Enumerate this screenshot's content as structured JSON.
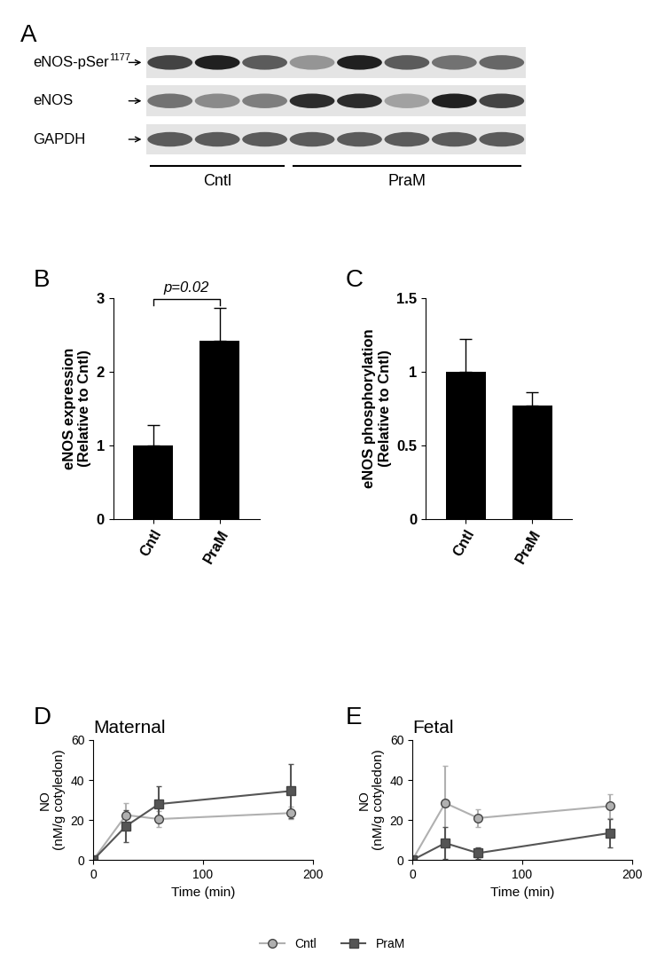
{
  "chart_data": [
    {
      "type": "blot",
      "panel": "A",
      "rows": [
        {
          "label": "eNOS-pSer",
          "superscript": "1177",
          "intensities": [
            0.8,
            0.95,
            0.7,
            0.45,
            0.95,
            0.7,
            0.6,
            0.65
          ]
        },
        {
          "label": "eNOS",
          "intensities": [
            0.6,
            0.5,
            0.55,
            0.9,
            0.9,
            0.4,
            0.95,
            0.8
          ]
        },
        {
          "label": "GAPDH",
          "intensities": [
            0.7,
            0.7,
            0.7,
            0.7,
            0.7,
            0.7,
            0.7,
            0.7
          ]
        }
      ],
      "groups": [
        {
          "name": "Cntl",
          "lanes": 3
        },
        {
          "name": "PraM",
          "lanes": 5
        }
      ]
    },
    {
      "type": "bar",
      "panel": "B",
      "categories": [
        "Cntl",
        "PraM"
      ],
      "values": [
        1.0,
        2.42
      ],
      "error": [
        0.27,
        0.45
      ],
      "color": "#000000",
      "y_label": "eNOS expression\n(Relative to Cntl)",
      "ylim": [
        0,
        3
      ],
      "yticks": [
        0,
        1,
        2,
        3
      ],
      "annotations": [
        {
          "text": "p=0.02"
        }
      ]
    },
    {
      "type": "bar",
      "panel": "C",
      "categories": [
        "Cntl",
        "PraM"
      ],
      "values": [
        1.0,
        0.77
      ],
      "error": [
        0.22,
        0.09
      ],
      "color": "#000000",
      "y_label": "eNOS phosphorylation\n(Relative to Cntl)",
      "ylim": [
        0,
        1.5
      ],
      "yticks": [
        0,
        0.5,
        1,
        1.5
      ]
    },
    {
      "type": "line",
      "panel": "D",
      "title": "Maternal",
      "x_label": "Time (min)",
      "y_label": "NO\n(nM/g cotyledon)",
      "x": [
        0,
        30,
        60,
        180
      ],
      "xlim": [
        0,
        200
      ],
      "xticks": [
        0,
        100,
        200
      ],
      "ylim": [
        0,
        60
      ],
      "yticks": [
        0,
        20,
        40,
        60
      ],
      "legend": "lower center",
      "series": [
        {
          "name": "Cntl",
          "color": "#b0b0b0",
          "marker": "circle",
          "values": [
            0,
            22.5,
            20.5,
            23.5
          ],
          "error": [
            0,
            6,
            4,
            3
          ]
        },
        {
          "name": "PraM",
          "color": "#555555",
          "marker": "square",
          "values": [
            0,
            17,
            28,
            34.5
          ],
          "error": [
            0,
            8,
            9,
            13.5
          ]
        }
      ]
    },
    {
      "type": "line",
      "panel": "E",
      "title": "Fetal",
      "x_label": "Time (min)",
      "y_label": "NO\n(nM/g cotyledon)",
      "x": [
        0,
        30,
        60,
        180
      ],
      "xlim": [
        0,
        200
      ],
      "xticks": [
        0,
        100,
        200
      ],
      "ylim": [
        0,
        60
      ],
      "yticks": [
        0,
        20,
        40,
        60
      ],
      "series": [
        {
          "name": "Cntl",
          "color": "#b0b0b0",
          "marker": "circle",
          "values": [
            0,
            28.5,
            21,
            27
          ],
          "error": [
            0,
            18.5,
            4.5,
            6
          ]
        },
        {
          "name": "PraM",
          "color": "#555555",
          "marker": "square",
          "values": [
            0,
            8.5,
            3.5,
            13.5
          ],
          "error": [
            0,
            8,
            3,
            7
          ]
        }
      ]
    }
  ]
}
